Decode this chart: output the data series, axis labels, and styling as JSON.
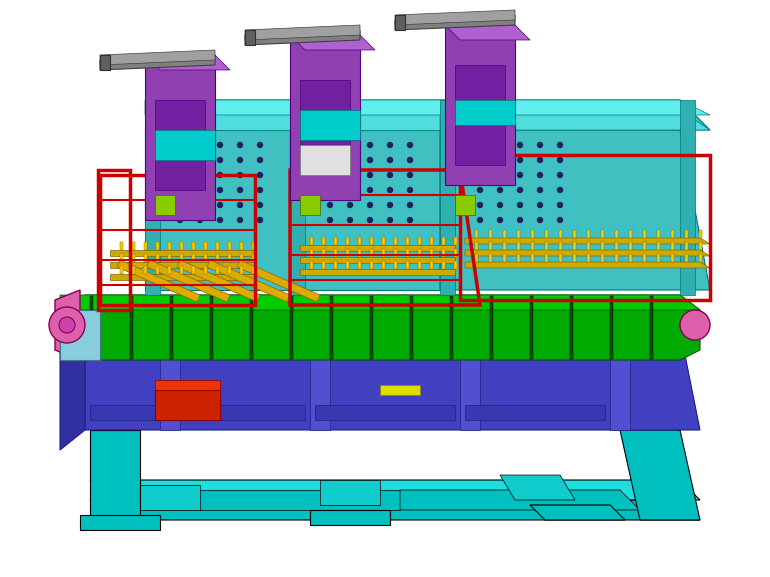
{
  "title": "",
  "background_color": "#ffffff",
  "figsize": [
    7.7,
    5.77
  ],
  "dpi": 100,
  "components": {
    "base_frame_color": "#00BFBF",
    "main_frame_color": "#4040C0",
    "upper_frame_color": "#40C0C0",
    "red_guard_color": "#CC0000",
    "green_belt_color": "#00AA00",
    "purple_arm_color": "#9040B0",
    "yellow_needle_color": "#DDAA00",
    "gray_rail_color": "#808080",
    "pink_roller_color": "#DD60AA"
  }
}
